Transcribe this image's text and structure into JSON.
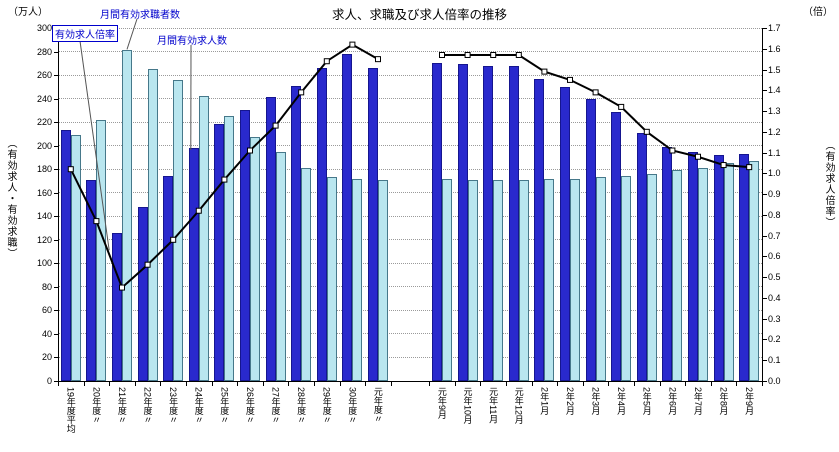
{
  "title": "求人、求職及び求人倍率の推移",
  "axis_labels": {
    "left_unit": "（万人）",
    "right_unit": "（倍）",
    "left_axis_title": "（有効求人・有効求職）",
    "right_axis_title": "（有効求人倍率）"
  },
  "legend": {
    "seekers": "月間有効求職者数",
    "ratio": "有効求人倍率",
    "openings": "月間有効求人数"
  },
  "chart_data": {
    "type": "bar",
    "subtype": "grouped bars with secondary-axis line",
    "title": "求人、求職及び求人倍率の推移",
    "left_axis": {
      "title": "（有効求人・有効求職）",
      "unit": "万人",
      "min": 0,
      "max": 300,
      "step": 20
    },
    "right_axis": {
      "title": "（有効求人倍率）",
      "unit": "倍",
      "min": 0,
      "max": 1.7,
      "step": 0.1
    },
    "series_names": {
      "openings": "月間有効求人数",
      "seekers": "月間有効求職者数",
      "ratio": "有効求人倍率"
    },
    "grid": "horizontal dotted",
    "legend_position": "top-left annotations with leader lines",
    "groups": [
      {
        "name": "annual",
        "categories": [
          "19年度平均",
          "20年度〃",
          "21年度〃",
          "22年度〃",
          "23年度〃",
          "24年度〃",
          "25年度〃",
          "26年度〃",
          "27年度〃",
          "28年度〃",
          "29年度〃",
          "30年度〃",
          "元年度〃"
        ],
        "openings": [
          213,
          171,
          126,
          148,
          174,
          198,
          218,
          230,
          241,
          251,
          266,
          278,
          266
        ],
        "seekers": [
          209,
          222,
          281,
          265,
          256,
          242,
          225,
          207,
          195,
          181,
          173,
          172,
          171
        ],
        "ratio": [
          1.02,
          0.77,
          0.45,
          0.56,
          0.68,
          0.82,
          0.97,
          1.11,
          1.23,
          1.39,
          1.54,
          1.62,
          1.55
        ]
      },
      {
        "name": "monthly",
        "categories": [
          "元年9月",
          "元年10月",
          "元年11月",
          "元年12月",
          "2年1月",
          "2年2月",
          "2年3月",
          "2年4月",
          "2年5月",
          "2年6月",
          "2年7月",
          "2年8月",
          "2年9月"
        ],
        "openings": [
          270,
          269,
          268,
          268,
          257,
          250,
          240,
          229,
          211,
          199,
          195,
          192,
          193
        ],
        "seekers": [
          172,
          171,
          171,
          171,
          172,
          172,
          173,
          174,
          176,
          179,
          181,
          185,
          187
        ],
        "ratio": [
          1.57,
          1.57,
          1.57,
          1.57,
          1.49,
          1.45,
          1.39,
          1.32,
          1.2,
          1.11,
          1.08,
          1.04,
          1.03
        ]
      }
    ],
    "colors": {
      "openings_bar": "#2929cd",
      "openings_border": "#15158f",
      "seekers_bar": "#b9e6ef",
      "seekers_border": "#46788a",
      "ratio_line": "#000000",
      "marker_fill": "#ffffff",
      "annotation_text": "#0000cc"
    }
  }
}
